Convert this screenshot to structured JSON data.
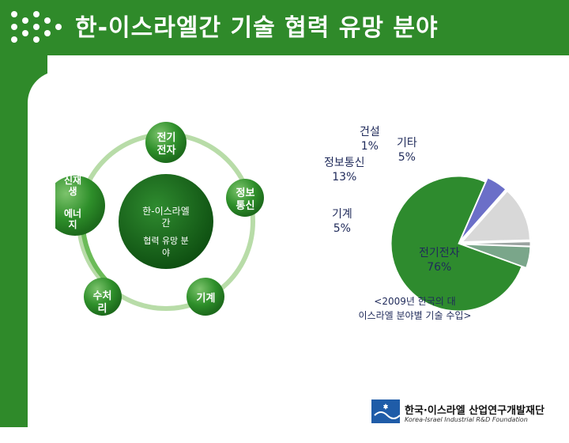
{
  "slide": {
    "title": "한-이스라엘간 기술 협력 유망 분야"
  },
  "cycle": {
    "nodes": {
      "top": "전기\n전자",
      "right": "정보\n통신",
      "bottom_right": "기계",
      "bottom_left": "수처\n리",
      "left": "신재\n생\n\n에너\n지"
    },
    "center_line1": "한-이스라엘\n간",
    "center_line2": "협력 유망 분\n야"
  },
  "chart_data": {
    "type": "pie",
    "categories": [
      "전기전자",
      "기계",
      "정보통신",
      "건설",
      "기타"
    ],
    "values": [
      76,
      5,
      13,
      1,
      5
    ],
    "labels": {
      "electric": "전기전자\n76%",
      "machine": "기계\n5%",
      "ict": "정보통신\n13%",
      "construction": "건설\n1%",
      "other": "기타\n5%"
    },
    "colors": [
      "#2e8b2e",
      "#6b6fc8",
      "#d8d8d8",
      "#9aa3a0",
      "#7aa68a"
    ],
    "caption": "<2009년 한국의 대\n이스라엘 분야별 기술 수입>"
  },
  "footer": {
    "org_name": "한국·이스라엘 산업연구개발재단",
    "org_sub": "Korea-Israel Industrial R&D Foundation"
  }
}
